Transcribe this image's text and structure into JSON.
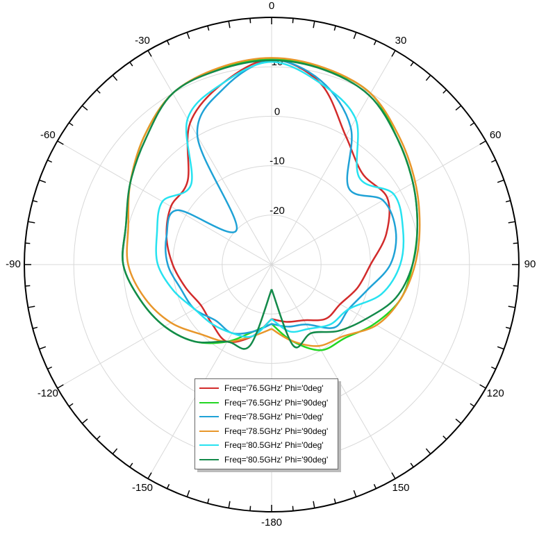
{
  "chart_data": {
    "type": "polar",
    "x": [
      -180,
      -165,
      -150,
      -135,
      -120,
      -105,
      -90,
      -75,
      -60,
      -45,
      -30,
      -15,
      0,
      15,
      30,
      45,
      60,
      75,
      90,
      105,
      120,
      135,
      150,
      165,
      180
    ],
    "xticks": [
      0,
      30,
      60,
      90,
      120,
      150,
      -180,
      -150,
      -120,
      -90,
      -60,
      -30
    ],
    "ylim": [
      -30,
      20
    ],
    "yticks": [
      -20,
      -10,
      0,
      10
    ],
    "grid": true,
    "series": [
      {
        "name": "Freq='76.5GHz' Phi='0deg'",
        "color": "#d22b2b",
        "values": [
          -19,
          -15,
          -12,
          -13,
          -13.5,
          -12,
          -10,
          -8,
          -6.5,
          -6,
          3,
          8,
          11.5,
          8,
          0,
          -4,
          -3,
          -6,
          -10,
          -12,
          -14,
          -14.5,
          -17,
          -18,
          -19
        ]
      },
      {
        "name": "Freq='76.5GHz' Phi='90deg'",
        "color": "#22d622",
        "values": [
          -18,
          -16,
          -12,
          -8,
          -5,
          -2.5,
          0,
          0.5,
          3,
          6.5,
          10,
          11,
          11.5,
          11,
          10,
          6,
          3,
          0.5,
          -1.5,
          -3,
          -6,
          -9,
          -10,
          -14,
          -18
        ]
      },
      {
        "name": "Freq='78.5GHz' Phi='0deg'",
        "color": "#1fa2d6",
        "values": [
          -18,
          -16,
          -14,
          -14,
          -12,
          -11,
          -9,
          -8,
          -8,
          -20,
          0,
          7,
          11.3,
          8.5,
          2,
          -8,
          -4,
          -4,
          -6,
          -10,
          -12,
          -12,
          -16,
          -17,
          -18
        ]
      },
      {
        "name": "Freq='78.5GHz' Phi='90deg'",
        "color": "#e8962a",
        "values": [
          -17,
          -15,
          -12,
          -10,
          -6.5,
          -3.5,
          -1,
          0,
          3,
          6.5,
          10,
          11.2,
          11.8,
          11.2,
          10,
          6.5,
          3.5,
          1,
          -1,
          -3,
          -5.5,
          -9.5,
          -11,
          -14,
          -17
        ]
      },
      {
        "name": "Freq='80.5GHz' Phi='0deg'",
        "color": "#27e2f0",
        "values": [
          -19,
          -15,
          -14,
          -13,
          -12,
          -9.5,
          -7,
          -6,
          -4.5,
          -7,
          4,
          8,
          11,
          8,
          4,
          -5,
          -1.5,
          -2.5,
          -4,
          -7,
          -12,
          -13,
          -15,
          -16,
          -19
        ]
      },
      {
        "name": "Freq='80.5GHz' Phi='90deg'",
        "color": "#138a4a",
        "values": [
          -25,
          -13,
          -12,
          -8,
          -5,
          -2.5,
          0,
          0.5,
          3,
          6,
          10,
          10.8,
          11.3,
          10.8,
          9.5,
          6,
          3,
          0.5,
          -1.5,
          -4,
          -8,
          -11,
          -14,
          -13,
          -25
        ]
      }
    ]
  }
}
